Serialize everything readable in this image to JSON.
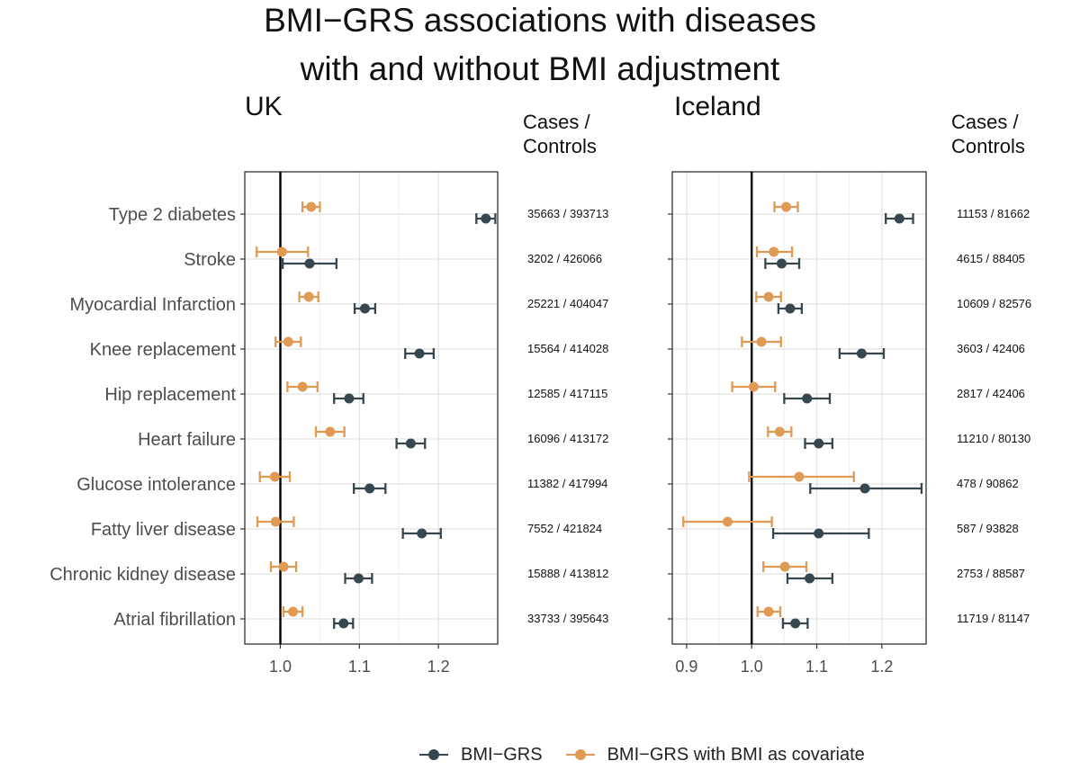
{
  "title_lines": [
    "BMI−GRS associations with diseases",
    "with and without BMI adjustment"
  ],
  "chart_data": {
    "type": "forest",
    "colors": {
      "bmi_grs": "#37474f",
      "bmi_grs_adj": "#e09a54"
    },
    "legend": [
      {
        "name": "BMI−GRS",
        "color": "#37474f"
      },
      {
        "name": "BMI−GRS with BMI as covariate",
        "color": "#e09a54"
      }
    ],
    "diseases": [
      "Type 2 diabetes",
      "Stroke",
      "Myocardial Infarction",
      "Knee replacement",
      "Hip replacement",
      "Heart failure",
      "Glucose intolerance",
      "Fatty liver disease",
      "Chronic kidney disease",
      "Atrial fibrillation"
    ],
    "cases_controls_header": [
      "Cases /",
      "Controls"
    ],
    "panels": [
      {
        "label": "UK",
        "xlim": [
          0.955,
          1.275
        ],
        "xticks": [
          1.0,
          1.1,
          1.2
        ],
        "tick_labels": [
          "1.0",
          "1.1",
          "1.2"
        ],
        "reference": 1.0,
        "cases_controls": [
          "35663 / 393713",
          "3202 / 426066",
          "25221 / 404047",
          "15564 / 414028",
          "12585 / 417115",
          "16096 / 413172",
          "11382 / 417994",
          "7552 / 421824",
          "15888 / 413812",
          "33733 / 395643"
        ],
        "series": [
          {
            "name": "BMI−GRS",
            "estimates": [
              1.26,
              1.037,
              1.107,
              1.176,
              1.087,
              1.165,
              1.113,
              1.179,
              1.099,
              1.08
            ],
            "lower": [
              1.248,
              1.003,
              1.094,
              1.158,
              1.068,
              1.147,
              1.093,
              1.155,
              1.082,
              1.068
            ],
            "upper": [
              1.272,
              1.071,
              1.12,
              1.194,
              1.105,
              1.183,
              1.133,
              1.203,
              1.116,
              1.092
            ]
          },
          {
            "name": "BMI−GRS with BMI as covariate",
            "estimates": [
              1.039,
              1.002,
              1.036,
              1.01,
              1.028,
              1.063,
              0.993,
              0.994,
              1.004,
              1.016
            ],
            "lower": [
              1.028,
              0.97,
              1.024,
              0.994,
              1.009,
              1.045,
              0.974,
              0.971,
              0.988,
              1.004
            ],
            "upper": [
              1.05,
              1.035,
              1.048,
              1.026,
              1.047,
              1.081,
              1.012,
              1.017,
              1.02,
              1.028
            ]
          }
        ]
      },
      {
        "label": "Iceland",
        "xlim": [
          0.878,
          1.268
        ],
        "xticks": [
          0.9,
          1.0,
          1.1,
          1.2
        ],
        "tick_labels": [
          "0.9",
          "1.0",
          "1.1",
          "1.2"
        ],
        "reference": 1.0,
        "cases_controls": [
          "11153 / 81662",
          "4615 / 88405",
          "10609 / 82576",
          "3603 / 42406",
          "2817 / 42406",
          "11210 / 80130",
          "478 / 90862",
          "587 / 93828",
          "2753 / 88587",
          "11719 / 81147"
        ],
        "series": [
          {
            "name": "BMI−GRS",
            "estimates": [
              1.227,
              1.046,
              1.059,
              1.169,
              1.085,
              1.103,
              1.174,
              1.103,
              1.089,
              1.067
            ],
            "lower": [
              1.206,
              1.021,
              1.041,
              1.135,
              1.05,
              1.082,
              1.09,
              1.033,
              1.055,
              1.048
            ],
            "upper": [
              1.248,
              1.073,
              1.077,
              1.203,
              1.12,
              1.124,
              1.261,
              1.18,
              1.124,
              1.086
            ]
          },
          {
            "name": "BMI−GRS with BMI as covariate",
            "estimates": [
              1.053,
              1.034,
              1.026,
              1.015,
              1.003,
              1.043,
              1.073,
              0.963,
              1.051,
              1.026
            ],
            "lower": [
              1.035,
              1.008,
              1.007,
              0.985,
              0.97,
              1.025,
              0.996,
              0.895,
              1.018,
              1.009
            ],
            "upper": [
              1.071,
              1.062,
              1.045,
              1.045,
              1.036,
              1.061,
              1.157,
              1.031,
              1.084,
              1.044
            ]
          }
        ]
      }
    ]
  }
}
